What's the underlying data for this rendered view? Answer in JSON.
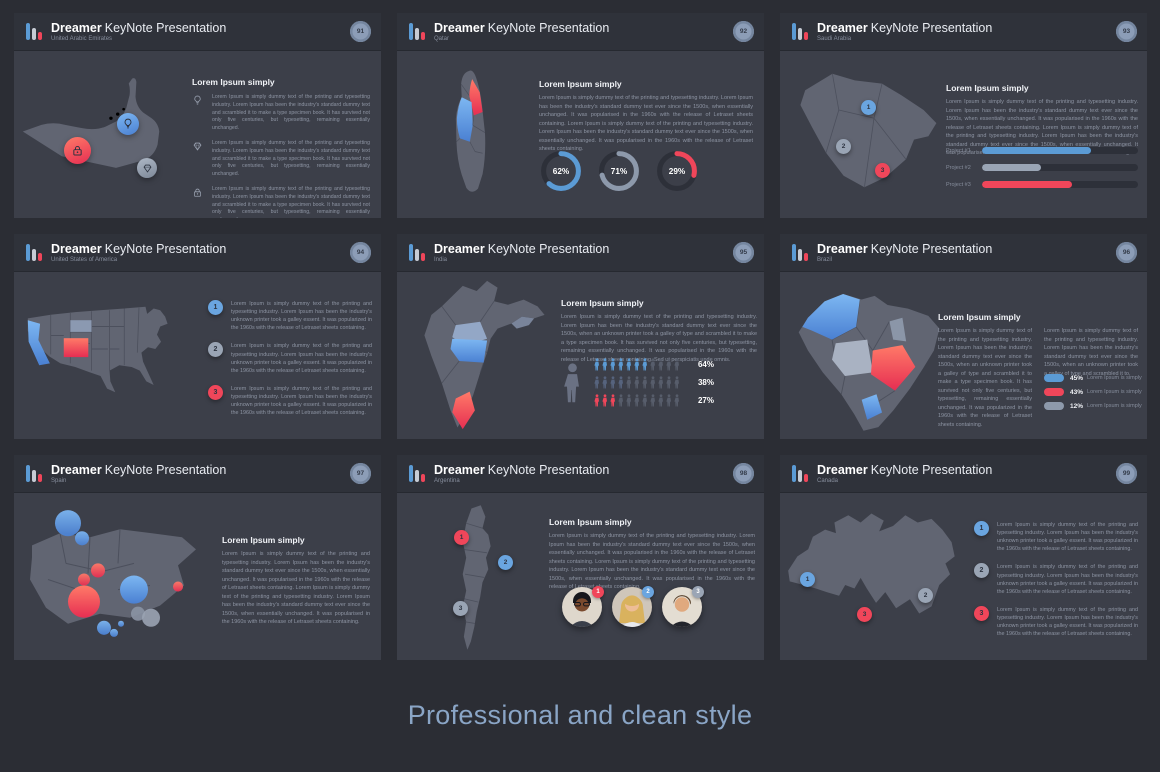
{
  "page": {
    "footer_title": "Professional and clean style",
    "background": "#2b2d34"
  },
  "brand": {
    "bold": "Dreamer",
    "rest": "KeyNote Presentation"
  },
  "colors": {
    "blue": "#5b9bd5",
    "red": "#f0465a",
    "gray": "#8d99ab"
  },
  "slides": [
    {
      "number": "91",
      "country": "United Arabic Emirates",
      "heading": "Lorem Ipsum simply",
      "items": [
        {
          "icon": "lightbulb",
          "text": "Lorem Ipsum is simply dummy text of the printing and typesetting industry. Lorem Ipsum has been the industry's standard dummy text and scrambled it to make a type specimen book. It has survived not only five centuries, but typesetting, remaining essentially unchanged."
        },
        {
          "icon": "diamond",
          "text": "Lorem Ipsum is simply dummy text of the printing and typesetting industry. Lorem Ipsum has been the industry's standard dummy text and scrambled it to make a type specimen book. It has survived not only five centuries, but typesetting, remaining essentially unchanged."
        },
        {
          "icon": "lock",
          "text": "Lorem Ipsum is simply dummy text of the printing and typesetting industry. Lorem Ipsum has been the industry's standard dummy text and scrambled it to make a type specimen book. It has survived not only five centuries, but typesetting, remaining essentially unchanged."
        }
      ]
    },
    {
      "number": "92",
      "country": "Qatar",
      "heading": "Lorem Ipsum simply",
      "paragraph": "Lorem Ipsum is simply dummy text of the printing and typesetting industry. Lorem Ipsum has been the industry's standard dummy text ever since the 1500s, when essentially unchanged. It was popularised in the 1960s with the release of Letraset sheets containing. Lorem Ipsum is simply dummy text of the printing and typesetting industry. Lorem Ipsum has been the industry's standard dummy text ever since the 1500s, when essentially unchanged. It was popularised in the 1960s with the release of Letraset sheets containing.",
      "donuts": [
        {
          "label": "62%",
          "value": 62,
          "color": "#5b9bd5"
        },
        {
          "label": "71%",
          "value": 71,
          "color": "#8d99ab"
        },
        {
          "label": "29%",
          "value": 29,
          "color": "#f0465a"
        }
      ]
    },
    {
      "number": "93",
      "country": "Saudi Arabia",
      "heading": "Lorem Ipsum simply",
      "paragraph": "Lorem Ipsum is simply dummy text of the printing and typesetting industry. Lorem Ipsum has been the industry's standard dummy text ever since the 1500s, when essentially unchanged. It was popularised in the 1960s with the release of Letraset sheets containing. Lorem Ipsum is simply dummy text of the printing and typesetting industry. Lorem Ipsum has been the industry's standard dummy text ever since the 1500s, when essentially unchanged. It was popularised in the 1960s with the release of Letraset sheets containing.",
      "pins": [
        {
          "n": "1",
          "color": "#6aa5e0"
        },
        {
          "n": "2",
          "color": "#9aa5b5"
        },
        {
          "n": "3",
          "color": "#f0465a"
        }
      ],
      "bars": [
        {
          "label": "Project #1",
          "value": 70,
          "color": "#5b9bd5"
        },
        {
          "label": "Project #2",
          "value": 38,
          "color": "#9aa5b5"
        },
        {
          "label": "Project #3",
          "value": 58,
          "color": "#f0465a"
        }
      ]
    },
    {
      "number": "94",
      "country": "United States of America",
      "items": [
        {
          "n": "1",
          "color": "#6aa5e0",
          "text": "Lorem Ipsum is simply dummy text of the printing and typesetting industry. Lorem Ipsum has been the industry's unknown printer took a galley essent. It was popularized in the 1960s with the release of Letraset sheets containing."
        },
        {
          "n": "2",
          "color": "#9aa5b5",
          "text": "Lorem Ipsum is simply dummy text of the printing and typesetting industry. Lorem Ipsum has been the industry's unknown printer took a galley essent. It was popularized in the 1960s with the release of Letraset sheets containing."
        },
        {
          "n": "3",
          "color": "#f0465a",
          "text": "Lorem Ipsum is simply dummy text of the printing and typesetting industry. Lorem Ipsum has been the industry's unknown printer took a galley essent. It was popularized in the 1960s with the release of Letraset sheets containing."
        }
      ]
    },
    {
      "number": "95",
      "country": "India",
      "heading": "Lorem Ipsum simply",
      "paragraph": "Lorem Ipsum is simply dummy text of the printing and typesetting industry. Lorem Ipsum has been the industry's standard dummy text ever since the 1500s, when an unknown printer took a galley of type and scrambled it to make a type specimen book. It has survived not only five centuries, but typesetting, remaining essentially unchanged. It was popularised in the 1960s with the release of Letraset sheets containing. Sed ut perspiciatis unde omnis.",
      "picto": [
        {
          "label": "64%",
          "filled": 7,
          "total": 11,
          "color": "#5b9bd5"
        },
        {
          "label": "38%",
          "filled": 4,
          "total": 11,
          "color": "#56637d"
        },
        {
          "label": "27%",
          "filled": 3,
          "total": 11,
          "color": "#f0465a"
        }
      ]
    },
    {
      "number": "96",
      "country": "Brazil",
      "heading": "Lorem Ipsum simply",
      "col1": "Lorem Ipsum is simply dummy text of the printing and typesetting industry. Lorem Ipsum has been the industry's standard dummy text ever since the 1500s, when an unknown printer took a galley of type and scrambled it to make a type specimen book. It has survived not only five centuries, but typesetting, remaining essentially unchanged. It was popularized in the 1960s with the release of Letraset sheets containing.",
      "col2": "Lorem Ipsum is simply dummy text of the printing and typesetting industry. Lorem Ipsum has been the industry's standard dummy text ever since the 1500s, when an unknown printer took a galley of type and scrambled it to.",
      "legend": [
        {
          "pct": "45%",
          "color": "#5b9bd5",
          "label": "Lorem Ipsum is simply"
        },
        {
          "pct": "43%",
          "color": "#f0465a",
          "label": "Lorem Ipsum is simply"
        },
        {
          "pct": "12%",
          "color": "#8d99ab",
          "label": "Lorem Ipsum is simply"
        }
      ]
    },
    {
      "number": "97",
      "country": "Spain",
      "heading": "Lorem Ipsum simply",
      "paragraph": "Lorem Ipsum is simply dummy text of the printing and typesetting industry. Lorem Ipsum has been the industry's standard dummy text ever since the 1500s, when essentially unchanged. It was popularised in the 1960s with the release of Letraset sheets containing. Lorem Ipsum is simply dummy text of the printing and typesetting industry. Lorem Ipsum has been the industry's standard dummy text ever since the 1500s, when essentially unchanged. It was popularised in the 1960s with the release of Letraset sheets containing."
    },
    {
      "number": "98",
      "country": "Argentina",
      "heading": "Lorem Ipsum simply",
      "paragraph": "Lorem Ipsum is simply dummy text of the printing and typesetting industry. Lorem Ipsum has been the industry's standard dummy text ever since the 1500s, when essentially unchanged. It was popularised in the 1960s with the release of Letraset sheets containing. Lorem Ipsum is simply dummy text of the printing and typesetting industry. Lorem Ipsum has been the industry's standard dummy text ever since the 1500s, when essentially unchanged. It was popularised in the 1960s with the release of Letraset sheets containing.",
      "pins": [
        {
          "n": "1",
          "color": "#f0465a"
        },
        {
          "n": "2",
          "color": "#6aa5e0"
        },
        {
          "n": "3",
          "color": "#9aa5b5"
        }
      ],
      "avatars": [
        {
          "n": "1",
          "badge": "#f0465a"
        },
        {
          "n": "2",
          "badge": "#6aa5e0"
        },
        {
          "n": "3",
          "badge": "#9aa5b5"
        }
      ]
    },
    {
      "number": "99",
      "country": "Canada",
      "pins": [
        {
          "n": "1",
          "color": "#6aa5e0"
        },
        {
          "n": "2",
          "color": "#9aa5b5"
        },
        {
          "n": "3",
          "color": "#f0465a"
        }
      ],
      "items": [
        {
          "n": "1",
          "color": "#6aa5e0",
          "text": "Lorem Ipsum is simply dummy text of the printing and typesetting industry. Lorem Ipsum has been the industry's unknown printer took a galley essent. It was popularized in the 1960s with the release of Letraset sheets containing."
        },
        {
          "n": "2",
          "color": "#9aa5b5",
          "text": "Lorem Ipsum is simply dummy text of the printing and typesetting industry. Lorem Ipsum has been the industry's unknown printer took a galley essent. It was popularized in the 1960s with the release of Letraset sheets containing."
        },
        {
          "n": "3",
          "color": "#f0465a",
          "text": "Lorem Ipsum is simply dummy text of the printing and typesetting industry. Lorem Ipsum has been the industry's unknown printer took a galley essent. It was popularized in the 1960s with the release of Letraset sheets containing."
        }
      ]
    }
  ]
}
